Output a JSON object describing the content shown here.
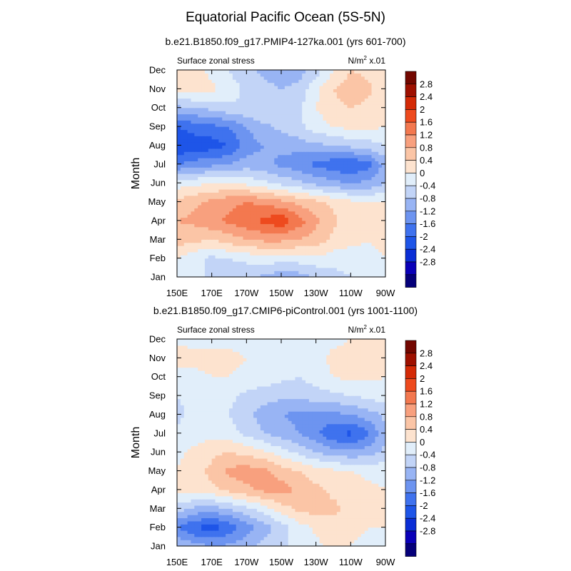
{
  "title": "Equatorial Pacific Ocean (5S-5N)",
  "colors": {
    "levels": [
      -3.2,
      -2.8,
      -2.4,
      -2.0,
      -1.6,
      -1.2,
      -0.8,
      -0.4,
      0,
      0.4,
      0.8,
      1.2,
      1.6,
      2.0,
      2.4,
      2.8,
      3.2
    ],
    "palette": [
      "#05007a",
      "#0a00b8",
      "#0a2ed6",
      "#1e55e8",
      "#3f72ee",
      "#6d94f0",
      "#98b4f4",
      "#c2d4f7",
      "#e1eefa",
      "#fde3cf",
      "#fbc5a6",
      "#f8a07e",
      "#f3784f",
      "#ee4a1e",
      "#d42a06",
      "#9e1000",
      "#730700"
    ]
  },
  "chart_data": [
    {
      "type": "heatmap",
      "panel_title": "b.e21.B1850.f09_g17.PMIP4-127ka.001 (yrs 601-700)",
      "left_label": "Surface zonal stress",
      "right_label": "N/m",
      "right_label_sup": "2",
      "right_label_suffix": " x.01",
      "ylabel": "Month",
      "x_ticks": [
        "150E",
        "170E",
        "170W",
        "150W",
        "130W",
        "110W",
        "90W"
      ],
      "x_tick_values": [
        150,
        170,
        190,
        210,
        230,
        250,
        270
      ],
      "xlim": [
        150,
        270
      ],
      "y_ticks": [
        "Jan",
        "Feb",
        "Mar",
        "Apr",
        "May",
        "Jun",
        "Jul",
        "Aug",
        "Sep",
        "Oct",
        "Nov",
        "Dec"
      ],
      "colorbar_labels": [
        "2.8",
        "2.4",
        "2",
        "1.6",
        "1.2",
        "0.8",
        "0.4",
        "0",
        "-0.4",
        "-0.8",
        "-1.2",
        "-1.6",
        "-2",
        "-2.4",
        "-2.8"
      ],
      "x": [
        150,
        160,
        170,
        180,
        190,
        200,
        210,
        220,
        230,
        240,
        250,
        260,
        270
      ],
      "z": [
        [
          0.2,
          0.1,
          -0.1,
          -0.2,
          -0.3,
          -0.5,
          -0.7,
          -0.6,
          -0.4,
          -0.2,
          0.0,
          0.2,
          0.3
        ],
        [
          0.4,
          0.1,
          -0.1,
          0.0,
          0.1,
          0.2,
          0.2,
          0.2,
          0.3,
          0.2,
          0.2,
          0.3,
          0.4
        ],
        [
          1.0,
          0.9,
          0.8,
          1.0,
          1.2,
          1.3,
          1.3,
          1.2,
          1.0,
          0.7,
          0.5,
          0.4,
          0.5
        ],
        [
          1.2,
          1.3,
          1.5,
          1.7,
          1.9,
          2.1,
          2.3,
          1.8,
          1.3,
          0.9,
          0.6,
          0.5,
          0.5
        ],
        [
          0.9,
          1.1,
          1.3,
          1.5,
          1.6,
          1.5,
          1.3,
          1.1,
          0.9,
          0.7,
          0.5,
          0.4,
          0.4
        ],
        [
          0.2,
          0.3,
          0.4,
          0.4,
          0.3,
          0.1,
          -0.1,
          -0.3,
          -0.5,
          -0.7,
          -0.8,
          -0.7,
          -0.4
        ],
        [
          -1.2,
          -1.0,
          -0.9,
          -0.8,
          -0.6,
          -0.7,
          -0.9,
          -1.1,
          -1.3,
          -1.5,
          -1.6,
          -1.4,
          -0.6
        ],
        [
          -2.0,
          -1.9,
          -1.8,
          -1.6,
          -1.0,
          -0.8,
          -0.7,
          -0.6,
          -0.5,
          -0.4,
          -0.3,
          -0.2,
          0.0
        ],
        [
          -1.6,
          -1.4,
          -1.3,
          -1.2,
          -0.8,
          -0.5,
          -0.3,
          -0.1,
          0.2,
          0.4,
          0.5,
          0.5,
          0.4
        ],
        [
          -0.5,
          -0.4,
          -0.3,
          -0.1,
          0.0,
          0.0,
          -0.1,
          -0.1,
          0.4,
          0.7,
          0.8,
          0.7,
          0.5
        ],
        [
          0.5,
          0.6,
          0.5,
          0.2,
          -0.1,
          -0.3,
          -0.4,
          -0.3,
          0.3,
          0.8,
          1.0,
          0.9,
          0.6
        ],
        [
          0.4,
          0.5,
          0.3,
          0.0,
          -0.3,
          -0.5,
          -0.6,
          -0.6,
          -0.2,
          0.4,
          0.8,
          0.7,
          0.5
        ]
      ]
    },
    {
      "type": "heatmap",
      "panel_title": "b.e21.B1850.f09_g17.CMIP6-piControl.001 (yrs 1001-1100)",
      "left_label": "Surface zonal stress",
      "right_label": "N/m",
      "right_label_sup": "2",
      "right_label_suffix": " x.01",
      "ylabel": "Month",
      "x_ticks": [
        "150E",
        "170E",
        "170W",
        "150W",
        "130W",
        "110W",
        "90W"
      ],
      "x_tick_values": [
        150,
        170,
        190,
        210,
        230,
        250,
        270
      ],
      "xlim": [
        150,
        270
      ],
      "y_ticks": [
        "Jan",
        "Feb",
        "Mar",
        "Apr",
        "May",
        "Jun",
        "Jul",
        "Aug",
        "Sep",
        "Oct",
        "Nov",
        "Dec"
      ],
      "colorbar_labels": [
        "2.8",
        "2.4",
        "2",
        "1.6",
        "1.2",
        "0.8",
        "0.4",
        "0",
        "-0.4",
        "-0.8",
        "-1.2",
        "-1.6",
        "-2",
        "-2.4",
        "-2.8"
      ],
      "x": [
        150,
        160,
        170,
        180,
        190,
        200,
        210,
        220,
        230,
        240,
        250,
        260,
        270
      ],
      "z": [
        [
          -0.4,
          -0.6,
          -0.8,
          -0.7,
          -0.5,
          -0.3,
          -0.1,
          0.1,
          0.3,
          0.5,
          0.4,
          0.3,
          0.4
        ],
        [
          -1.2,
          -1.6,
          -1.8,
          -1.5,
          -1.0,
          -0.6,
          -0.2,
          0.2,
          0.5,
          0.6,
          0.5,
          0.4,
          0.4
        ],
        [
          -0.2,
          -0.5,
          -0.6,
          -0.4,
          -0.1,
          0.2,
          0.6,
          0.9,
          1.0,
          0.9,
          0.7,
          0.5,
          0.4
        ],
        [
          0.6,
          0.6,
          0.7,
          0.9,
          1.1,
          1.3,
          1.4,
          1.1,
          0.9,
          0.7,
          0.6,
          0.5,
          0.4
        ],
        [
          0.4,
          0.7,
          0.9,
          1.3,
          1.4,
          1.3,
          1.0,
          0.8,
          0.6,
          0.5,
          0.4,
          0.3,
          0.3
        ],
        [
          0.3,
          0.5,
          0.7,
          0.8,
          0.7,
          0.5,
          0.2,
          -0.1,
          -0.4,
          -0.6,
          -0.7,
          -0.6,
          -0.3
        ],
        [
          0.1,
          0.2,
          0.3,
          0.2,
          -0.1,
          -0.4,
          -0.6,
          -0.8,
          -1.1,
          -1.6,
          -1.7,
          -1.3,
          -0.5
        ],
        [
          -0.1,
          0.1,
          0.2,
          0.0,
          -0.3,
          -0.6,
          -0.8,
          -0.9,
          -0.9,
          -0.9,
          -0.8,
          -0.6,
          -0.3
        ],
        [
          0.0,
          0.1,
          0.2,
          0.1,
          -0.1,
          -0.2,
          -0.3,
          -0.3,
          -0.2,
          -0.1,
          0.0,
          0.1,
          0.2
        ],
        [
          0.2,
          0.3,
          0.4,
          0.4,
          0.3,
          0.2,
          0.1,
          0.0,
          0.2,
          0.4,
          0.5,
          0.5,
          0.4
        ],
        [
          0.6,
          0.5,
          0.5,
          0.5,
          0.4,
          0.3,
          0.2,
          0.1,
          0.3,
          0.5,
          0.6,
          0.6,
          0.5
        ],
        [
          0.3,
          0.3,
          0.3,
          0.3,
          0.2,
          0.2,
          0.1,
          0.1,
          0.2,
          0.3,
          0.4,
          0.4,
          0.4
        ]
      ]
    }
  ]
}
